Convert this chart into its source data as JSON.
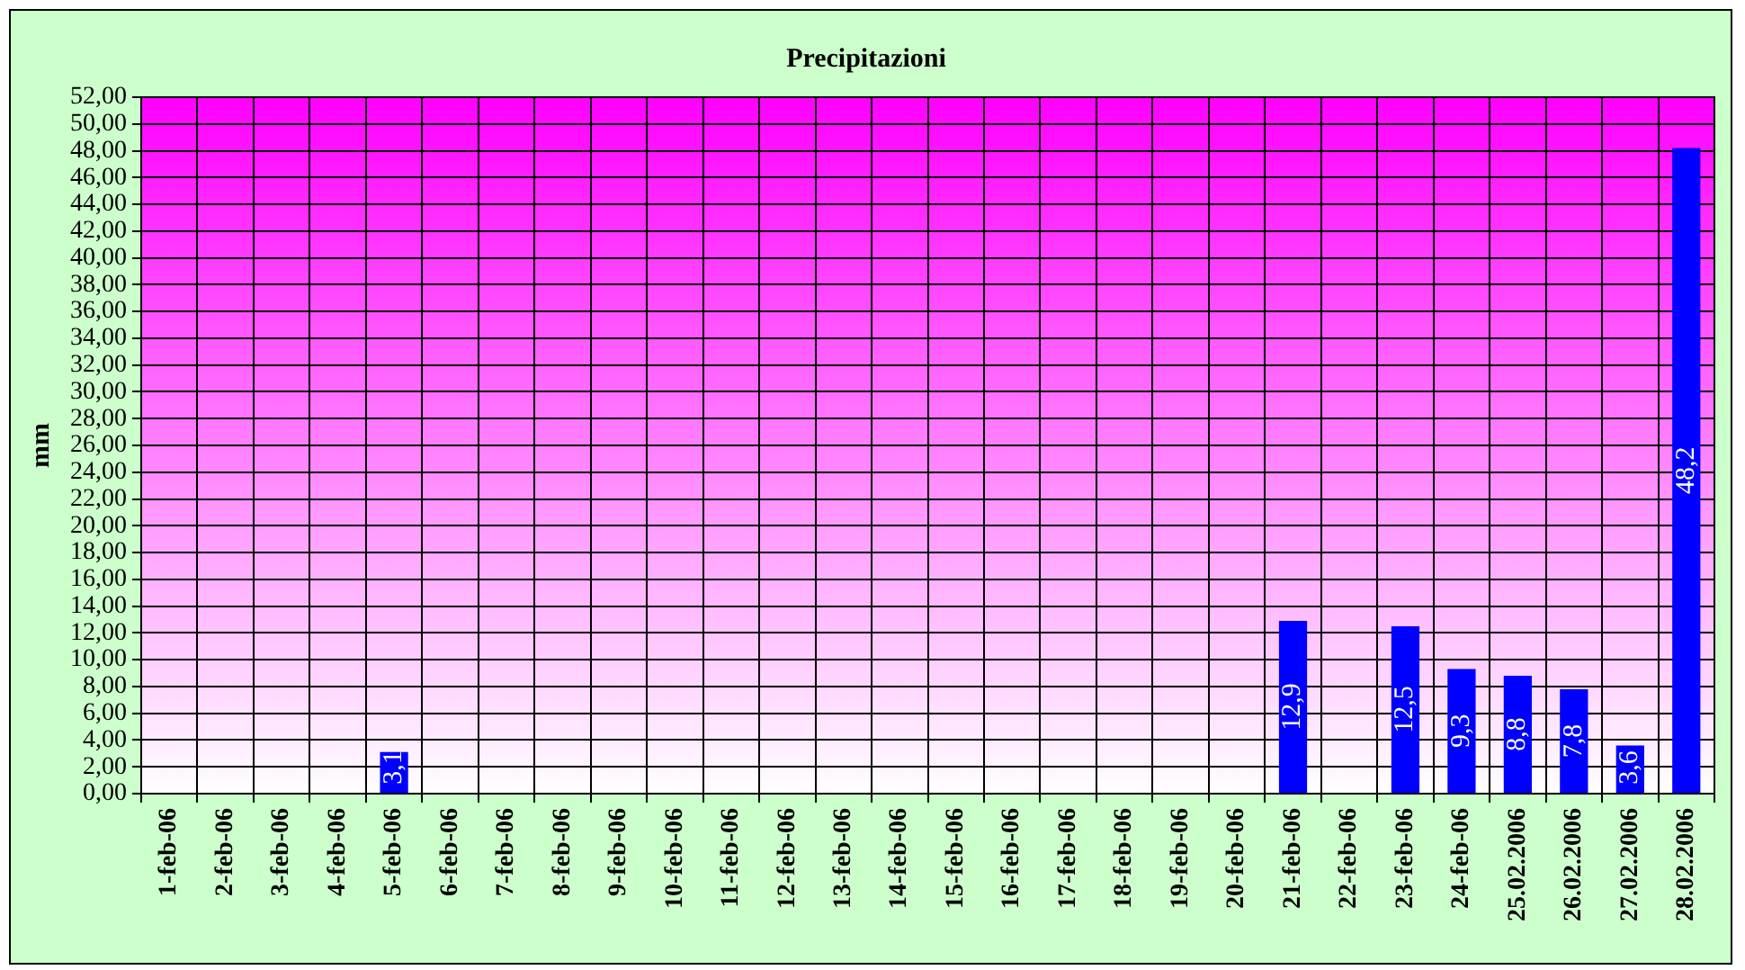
{
  "chart_data": {
    "type": "bar",
    "title": "Precipitazioni",
    "ylabel": "mm",
    "categories": [
      "1-feb-06",
      "2-feb-06",
      "3-feb-06",
      "4-feb-06",
      "5-feb-06",
      "6-feb-06",
      "7-feb-06",
      "8-feb-06",
      "9-feb-06",
      "10-feb-06",
      "11-feb-06",
      "12-feb-06",
      "13-feb-06",
      "14-feb-06",
      "15-feb-06",
      "16-feb-06",
      "17-feb-06",
      "18-feb-06",
      "19-feb-06",
      "20-feb-06",
      "21-feb-06",
      "22-feb-06",
      "23-feb-06",
      "24-feb-06",
      "25.02.2006",
      "26.02.2006",
      "27.02.2006",
      "28.02.2006"
    ],
    "values": [
      0,
      0,
      0,
      0,
      3.1,
      0,
      0,
      0,
      0,
      0,
      0,
      0,
      0,
      0,
      0,
      0,
      0,
      0,
      0,
      0,
      12.9,
      0,
      12.5,
      9.3,
      8.8,
      7.8,
      3.6,
      48.2
    ],
    "value_labels": [
      null,
      null,
      null,
      null,
      "3,1",
      null,
      null,
      null,
      null,
      null,
      null,
      null,
      null,
      null,
      null,
      null,
      null,
      null,
      null,
      null,
      "12,9",
      null,
      "12,5",
      "9,3",
      "8,8",
      "7,8",
      "3,6",
      "48,2"
    ],
    "color": "#0000ff",
    "ylim": [
      0,
      52
    ],
    "yticks": [
      {
        "value": 0,
        "label": "0,00"
      },
      {
        "value": 2,
        "label": "2,00"
      },
      {
        "value": 4,
        "label": "4,00"
      },
      {
        "value": 6,
        "label": "6,00"
      },
      {
        "value": 8,
        "label": "8,00"
      },
      {
        "value": 10,
        "label": "10,00"
      },
      {
        "value": 12,
        "label": "12,00"
      },
      {
        "value": 14,
        "label": "14,00"
      },
      {
        "value": 16,
        "label": "16,00"
      },
      {
        "value": 18,
        "label": "18,00"
      },
      {
        "value": 20,
        "label": "20,00"
      },
      {
        "value": 22,
        "label": "22,00"
      },
      {
        "value": 24,
        "label": "24,00"
      },
      {
        "value": 26,
        "label": "26,00"
      },
      {
        "value": 28,
        "label": "28,00"
      },
      {
        "value": 30,
        "label": "30,00"
      },
      {
        "value": 32,
        "label": "32,00"
      },
      {
        "value": 34,
        "label": "34,00"
      },
      {
        "value": 36,
        "label": "36,00"
      },
      {
        "value": 38,
        "label": "38,00"
      },
      {
        "value": 40,
        "label": "40,00"
      },
      {
        "value": 42,
        "label": "42,00"
      },
      {
        "value": 44,
        "label": "44,00"
      },
      {
        "value": 46,
        "label": "46,00"
      },
      {
        "value": 48,
        "label": "48,00"
      },
      {
        "value": 50,
        "label": "50,00"
      },
      {
        "value": 52,
        "label": "52,00"
      }
    ],
    "grid": true,
    "legend": false
  }
}
